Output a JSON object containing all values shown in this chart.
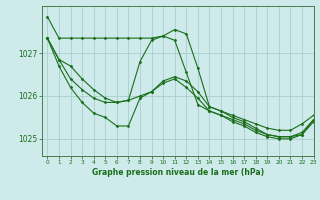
{
  "title": "Graphe pression niveau de la mer (hPa)",
  "bg_color": "#ceeaea",
  "grid_color": "#aacfcf",
  "line_color": "#1a6e1a",
  "xlim": [
    -0.5,
    23
  ],
  "ylim": [
    1024.6,
    1028.1
  ],
  "yticks": [
    1025,
    1026,
    1027
  ],
  "xticks": [
    0,
    1,
    2,
    3,
    4,
    5,
    6,
    7,
    8,
    9,
    10,
    11,
    12,
    13,
    14,
    15,
    16,
    17,
    18,
    19,
    20,
    21,
    22,
    23
  ],
  "series": [
    [
      1027.85,
      1027.35,
      1027.35,
      1027.35,
      1027.35,
      1027.35,
      1027.35,
      1027.35,
      1027.35,
      1027.35,
      1027.4,
      1027.55,
      1027.45,
      1026.65,
      1025.75,
      1025.65,
      1025.55,
      1025.45,
      1025.35,
      1025.25,
      1025.2,
      1025.2,
      1025.35,
      1025.55
    ],
    [
      1027.35,
      1026.85,
      1026.7,
      1026.4,
      1026.15,
      1025.95,
      1025.85,
      1025.9,
      1026.8,
      1027.3,
      1027.4,
      1027.3,
      1026.55,
      1025.8,
      1025.65,
      1025.55,
      1025.45,
      1025.35,
      1025.2,
      1025.1,
      1025.05,
      1025.05,
      1025.1,
      1025.45
    ],
    [
      1027.35,
      1026.85,
      1026.4,
      1026.15,
      1025.95,
      1025.85,
      1025.85,
      1025.9,
      1026.0,
      1026.1,
      1026.35,
      1026.45,
      1026.35,
      1026.1,
      1025.75,
      1025.65,
      1025.5,
      1025.4,
      1025.25,
      1025.1,
      1025.05,
      1025.05,
      1025.15,
      1025.45
    ],
    [
      1027.35,
      1026.7,
      1026.2,
      1025.85,
      1025.6,
      1025.5,
      1025.3,
      1025.3,
      1025.95,
      1026.1,
      1026.3,
      1026.4,
      1026.2,
      1025.95,
      1025.65,
      1025.55,
      1025.4,
      1025.3,
      1025.15,
      1025.05,
      1025.0,
      1025.0,
      1025.1,
      1025.4
    ]
  ]
}
